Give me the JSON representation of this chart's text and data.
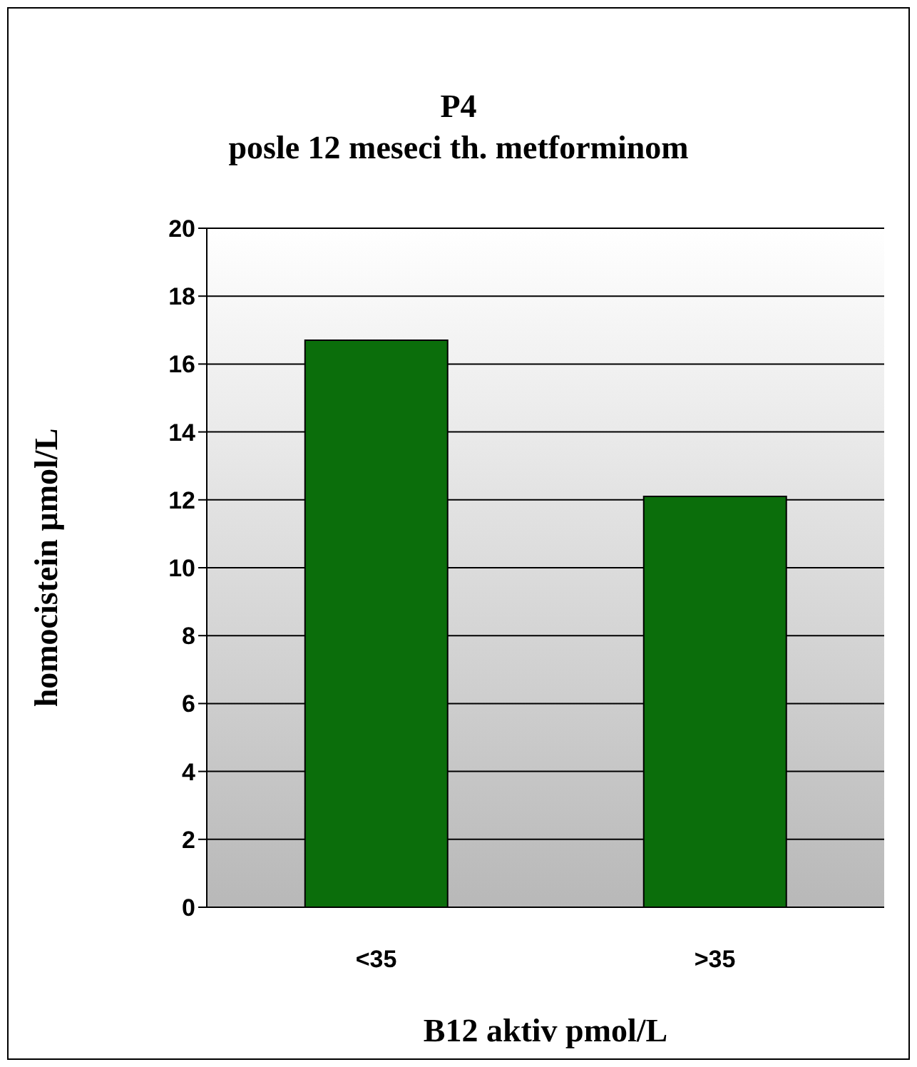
{
  "chart_data": {
    "type": "bar",
    "title": "P4\nposle 12 meseci th. metforminom",
    "xlabel": "B12 aktiv  pmol/L",
    "ylabel": "homocistein  µmol/L",
    "categories": [
      "<35",
      ">35"
    ],
    "values": [
      16.7,
      12.1
    ],
    "color": "#0b6e0b",
    "ylim": [
      0,
      20
    ],
    "yticks": [
      0,
      2,
      4,
      6,
      8,
      10,
      12,
      14,
      16,
      18,
      20
    ],
    "grid": "y"
  }
}
